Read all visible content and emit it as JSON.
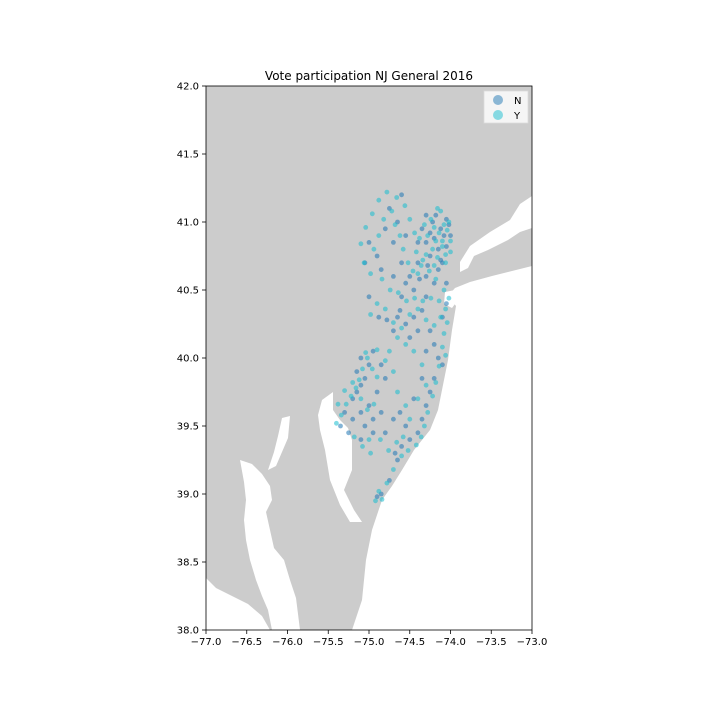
{
  "chart_data": {
    "type": "scatter",
    "title": "Vote participation NJ General 2016",
    "xlabel": "",
    "ylabel": "",
    "xlim": [
      -77.0,
      -73.0
    ],
    "ylim": [
      38.0,
      42.0
    ],
    "x_ticks": [
      -77.0,
      -76.5,
      -76.0,
      -75.5,
      -75.0,
      -74.5,
      -74.0,
      -73.5,
      -73.0
    ],
    "x_tick_labels": [
      "−77.0",
      "−76.5",
      "−76.0",
      "−75.5",
      "−75.0",
      "−74.5",
      "−74.0",
      "−73.5",
      "−73.0"
    ],
    "y_ticks": [
      38.0,
      38.5,
      39.0,
      39.5,
      40.0,
      40.5,
      41.0,
      41.5,
      42.0
    ],
    "y_tick_labels": [
      "38.0",
      "38.5",
      "39.0",
      "39.5",
      "40.0",
      "40.5",
      "41.0",
      "41.5",
      "42.0"
    ],
    "grid": false,
    "legend_position": "top-right",
    "colors": {
      "background_land": "#cccccc",
      "water": "#ffffff",
      "N": "#1f77b4",
      "Y": "#17becf"
    },
    "series": [
      {
        "name": "N",
        "color": "#1f77b4",
        "points": [
          [
            -74.05,
            41.02
          ],
          [
            -74.12,
            40.95
          ],
          [
            -74.2,
            40.88
          ],
          [
            -74.08,
            40.9
          ],
          [
            -74.15,
            40.8
          ],
          [
            -74.25,
            40.75
          ],
          [
            -74.3,
            40.85
          ],
          [
            -74.18,
            41.05
          ],
          [
            -74.35,
            40.95
          ],
          [
            -74.4,
            40.7
          ],
          [
            -74.5,
            40.6
          ],
          [
            -74.45,
            40.5
          ],
          [
            -74.55,
            40.55
          ],
          [
            -74.6,
            40.7
          ],
          [
            -74.7,
            40.85
          ],
          [
            -74.8,
            40.95
          ],
          [
            -74.65,
            41.0
          ],
          [
            -74.9,
            40.75
          ],
          [
            -75.0,
            40.85
          ],
          [
            -74.75,
            41.1
          ],
          [
            -74.6,
            41.2
          ],
          [
            -74.3,
            41.05
          ],
          [
            -74.1,
            40.7
          ],
          [
            -74.2,
            40.55
          ],
          [
            -74.3,
            40.45
          ],
          [
            -74.35,
            40.35
          ],
          [
            -74.45,
            40.3
          ],
          [
            -74.55,
            40.25
          ],
          [
            -74.65,
            40.3
          ],
          [
            -74.7,
            40.2
          ],
          [
            -74.25,
            40.2
          ],
          [
            -74.2,
            40.1
          ],
          [
            -74.15,
            40.0
          ],
          [
            -74.1,
            39.95
          ],
          [
            -74.2,
            39.85
          ],
          [
            -74.25,
            39.75
          ],
          [
            -74.3,
            39.65
          ],
          [
            -74.35,
            39.55
          ],
          [
            -74.4,
            39.45
          ],
          [
            -74.5,
            39.4
          ],
          [
            -74.6,
            39.35
          ],
          [
            -74.65,
            39.25
          ],
          [
            -74.75,
            39.1
          ],
          [
            -74.85,
            39.0
          ],
          [
            -74.9,
            38.98
          ],
          [
            -75.0,
            39.95
          ],
          [
            -75.05,
            39.85
          ],
          [
            -75.1,
            39.8
          ],
          [
            -75.15,
            39.75
          ],
          [
            -75.2,
            39.7
          ],
          [
            -75.1,
            39.6
          ],
          [
            -75.0,
            39.65
          ],
          [
            -74.95,
            39.55
          ],
          [
            -75.05,
            39.5
          ],
          [
            -75.2,
            39.55
          ],
          [
            -75.3,
            39.6
          ],
          [
            -75.35,
            39.5
          ],
          [
            -75.25,
            39.45
          ],
          [
            -75.1,
            39.4
          ],
          [
            -74.95,
            39.45
          ],
          [
            -74.85,
            39.6
          ],
          [
            -74.9,
            39.75
          ],
          [
            -74.8,
            39.85
          ],
          [
            -74.85,
            39.95
          ],
          [
            -74.95,
            40.05
          ],
          [
            -75.15,
            39.9
          ],
          [
            -75.1,
            40.0
          ],
          [
            -74.05,
            40.4
          ],
          [
            -74.1,
            40.3
          ],
          [
            -74.3,
            40.6
          ],
          [
            -74.15,
            40.65
          ],
          [
            -74.25,
            40.92
          ],
          [
            -74.05,
            40.82
          ],
          [
            -74.12,
            40.72
          ],
          [
            -74.4,
            40.85
          ],
          [
            -74.55,
            40.9
          ],
          [
            -74.7,
            40.6
          ],
          [
            -74.85,
            40.65
          ],
          [
            -75.05,
            40.7
          ],
          [
            -74.6,
            40.45
          ],
          [
            -74.5,
            40.15
          ],
          [
            -74.4,
            40.2
          ],
          [
            -74.3,
            40.05
          ],
          [
            -74.05,
            40.55
          ],
          [
            -74.0,
            40.9
          ],
          [
            -74.02,
            40.98
          ],
          [
            -74.22,
            41.0
          ],
          [
            -74.28,
            40.68
          ],
          [
            -74.38,
            40.58
          ],
          [
            -74.62,
            40.35
          ],
          [
            -74.78,
            40.28
          ],
          [
            -74.88,
            40.3
          ],
          [
            -75.0,
            40.45
          ],
          [
            -74.68,
            39.3
          ],
          [
            -74.55,
            39.5
          ],
          [
            -74.45,
            39.7
          ],
          [
            -74.7,
            39.55
          ],
          [
            -74.8,
            39.45
          ],
          [
            -74.62,
            39.6
          ],
          [
            -74.35,
            39.85
          ]
        ]
      },
      {
        "name": "Y",
        "color": "#17becf",
        "points": [
          [
            -74.02,
            41.0
          ],
          [
            -74.08,
            40.98
          ],
          [
            -74.14,
            40.92
          ],
          [
            -74.18,
            40.86
          ],
          [
            -74.1,
            40.82
          ],
          [
            -74.06,
            40.76
          ],
          [
            -74.16,
            40.74
          ],
          [
            -74.22,
            40.8
          ],
          [
            -74.28,
            40.9
          ],
          [
            -74.24,
            41.02
          ],
          [
            -74.12,
            41.08
          ],
          [
            -74.32,
            40.98
          ],
          [
            -74.38,
            40.88
          ],
          [
            -74.42,
            40.78
          ],
          [
            -74.36,
            40.68
          ],
          [
            -74.46,
            40.64
          ],
          [
            -74.52,
            40.7
          ],
          [
            -74.58,
            40.8
          ],
          [
            -74.62,
            40.9
          ],
          [
            -74.68,
            40.98
          ],
          [
            -74.72,
            41.08
          ],
          [
            -74.82,
            41.02
          ],
          [
            -74.88,
            40.9
          ],
          [
            -74.94,
            40.8
          ],
          [
            -75.06,
            40.7
          ],
          [
            -74.98,
            40.62
          ],
          [
            -74.84,
            40.58
          ],
          [
            -74.74,
            40.5
          ],
          [
            -74.64,
            40.48
          ],
          [
            -74.54,
            40.42
          ],
          [
            -74.44,
            40.44
          ],
          [
            -74.34,
            40.42
          ],
          [
            -74.24,
            40.44
          ],
          [
            -74.14,
            40.42
          ],
          [
            -74.06,
            40.36
          ],
          [
            -74.04,
            40.26
          ],
          [
            -74.08,
            40.18
          ],
          [
            -74.1,
            40.08
          ],
          [
            -74.06,
            40.02
          ],
          [
            -74.14,
            39.94
          ],
          [
            -74.18,
            39.82
          ],
          [
            -74.22,
            39.72
          ],
          [
            -74.28,
            39.6
          ],
          [
            -74.32,
            39.5
          ],
          [
            -74.36,
            39.42
          ],
          [
            -74.42,
            39.36
          ],
          [
            -74.52,
            39.32
          ],
          [
            -74.6,
            39.28
          ],
          [
            -74.7,
            39.18
          ],
          [
            -74.78,
            39.08
          ],
          [
            -74.84,
            38.96
          ],
          [
            -74.92,
            38.95
          ],
          [
            -74.88,
            39.02
          ],
          [
            -74.5,
            39.55
          ],
          [
            -74.55,
            39.65
          ],
          [
            -74.65,
            39.75
          ],
          [
            -74.7,
            39.9
          ],
          [
            -74.75,
            40.05
          ],
          [
            -74.65,
            40.15
          ],
          [
            -74.55,
            40.1
          ],
          [
            -74.45,
            40.05
          ],
          [
            -74.35,
            39.95
          ],
          [
            -74.3,
            39.8
          ],
          [
            -74.4,
            39.7
          ],
          [
            -75.02,
            40.0
          ],
          [
            -75.08,
            39.92
          ],
          [
            -75.12,
            39.84
          ],
          [
            -75.16,
            39.78
          ],
          [
            -75.22,
            39.72
          ],
          [
            -75.28,
            39.66
          ],
          [
            -75.34,
            39.58
          ],
          [
            -75.4,
            39.52
          ],
          [
            -75.38,
            39.66
          ],
          [
            -75.3,
            39.76
          ],
          [
            -75.2,
            39.82
          ],
          [
            -75.1,
            39.7
          ],
          [
            -75.02,
            39.62
          ],
          [
            -74.94,
            39.66
          ],
          [
            -74.9,
            39.86
          ],
          [
            -74.96,
            39.92
          ],
          [
            -75.04,
            40.04
          ],
          [
            -74.9,
            40.06
          ],
          [
            -74.8,
            39.98
          ],
          [
            -75.0,
            39.4
          ],
          [
            -75.08,
            39.35
          ],
          [
            -75.18,
            39.42
          ],
          [
            -74.98,
            39.3
          ],
          [
            -74.86,
            39.4
          ],
          [
            -74.76,
            39.32
          ],
          [
            -74.66,
            39.38
          ],
          [
            -74.58,
            39.42
          ],
          [
            -74.98,
            40.32
          ],
          [
            -74.9,
            40.4
          ],
          [
            -74.8,
            40.36
          ],
          [
            -74.7,
            40.26
          ],
          [
            -74.6,
            40.22
          ],
          [
            -74.5,
            40.32
          ],
          [
            -74.4,
            40.36
          ],
          [
            -74.3,
            40.28
          ],
          [
            -74.2,
            40.24
          ],
          [
            -74.12,
            40.3
          ],
          [
            -74.02,
            40.44
          ],
          [
            -74.08,
            40.5
          ],
          [
            -74.18,
            40.58
          ],
          [
            -74.26,
            40.64
          ],
          [
            -74.34,
            40.72
          ],
          [
            -74.44,
            40.92
          ],
          [
            -74.5,
            41.02
          ],
          [
            -74.56,
            41.12
          ],
          [
            -74.66,
            41.18
          ],
          [
            -74.78,
            41.22
          ],
          [
            -74.88,
            41.16
          ],
          [
            -74.96,
            41.06
          ],
          [
            -75.04,
            40.96
          ],
          [
            -75.1,
            40.84
          ],
          [
            -74.16,
            41.1
          ],
          [
            -74.04,
            40.94
          ],
          [
            -74.0,
            40.86
          ],
          [
            -74.06,
            40.7
          ],
          [
            -74.2,
            40.68
          ],
          [
            -74.0,
            40.78
          ],
          [
            -74.1,
            40.86
          ],
          [
            -74.2,
            40.96
          ],
          [
            -74.3,
            40.76
          ],
          [
            -74.4,
            40.62
          ]
        ]
      }
    ]
  }
}
